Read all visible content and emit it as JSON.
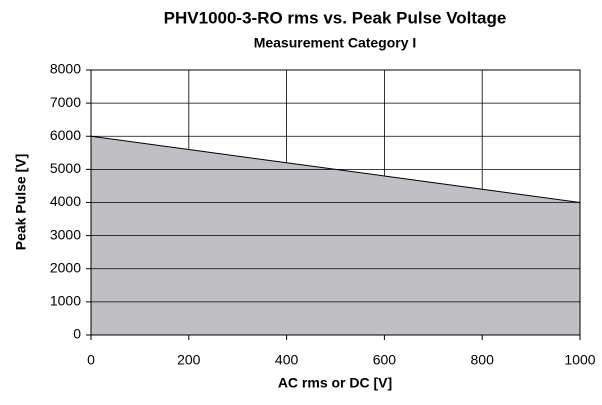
{
  "chart_data": {
    "type": "area",
    "title": "PHV1000-3-RO rms vs. Peak Pulse Voltage",
    "subtitle": "Measurement Category I",
    "x_label": "AC rms or DC [V]",
    "y_label": "Peak Pulse [V]",
    "x": [
      0,
      200,
      400,
      600,
      800,
      1000
    ],
    "series": [
      {
        "color": "#c0c0c4",
        "values": [
          6000,
          5600,
          5200,
          4800,
          4400,
          4000
        ]
      }
    ],
    "xlim": [
      0,
      1000
    ],
    "xticks": [
      0,
      200,
      400,
      600,
      800,
      1000
    ],
    "ylim": [
      0,
      8000
    ],
    "yticks": [
      0,
      1000,
      2000,
      3000,
      4000,
      5000,
      6000,
      7000,
      8000
    ],
    "grid": true
  }
}
